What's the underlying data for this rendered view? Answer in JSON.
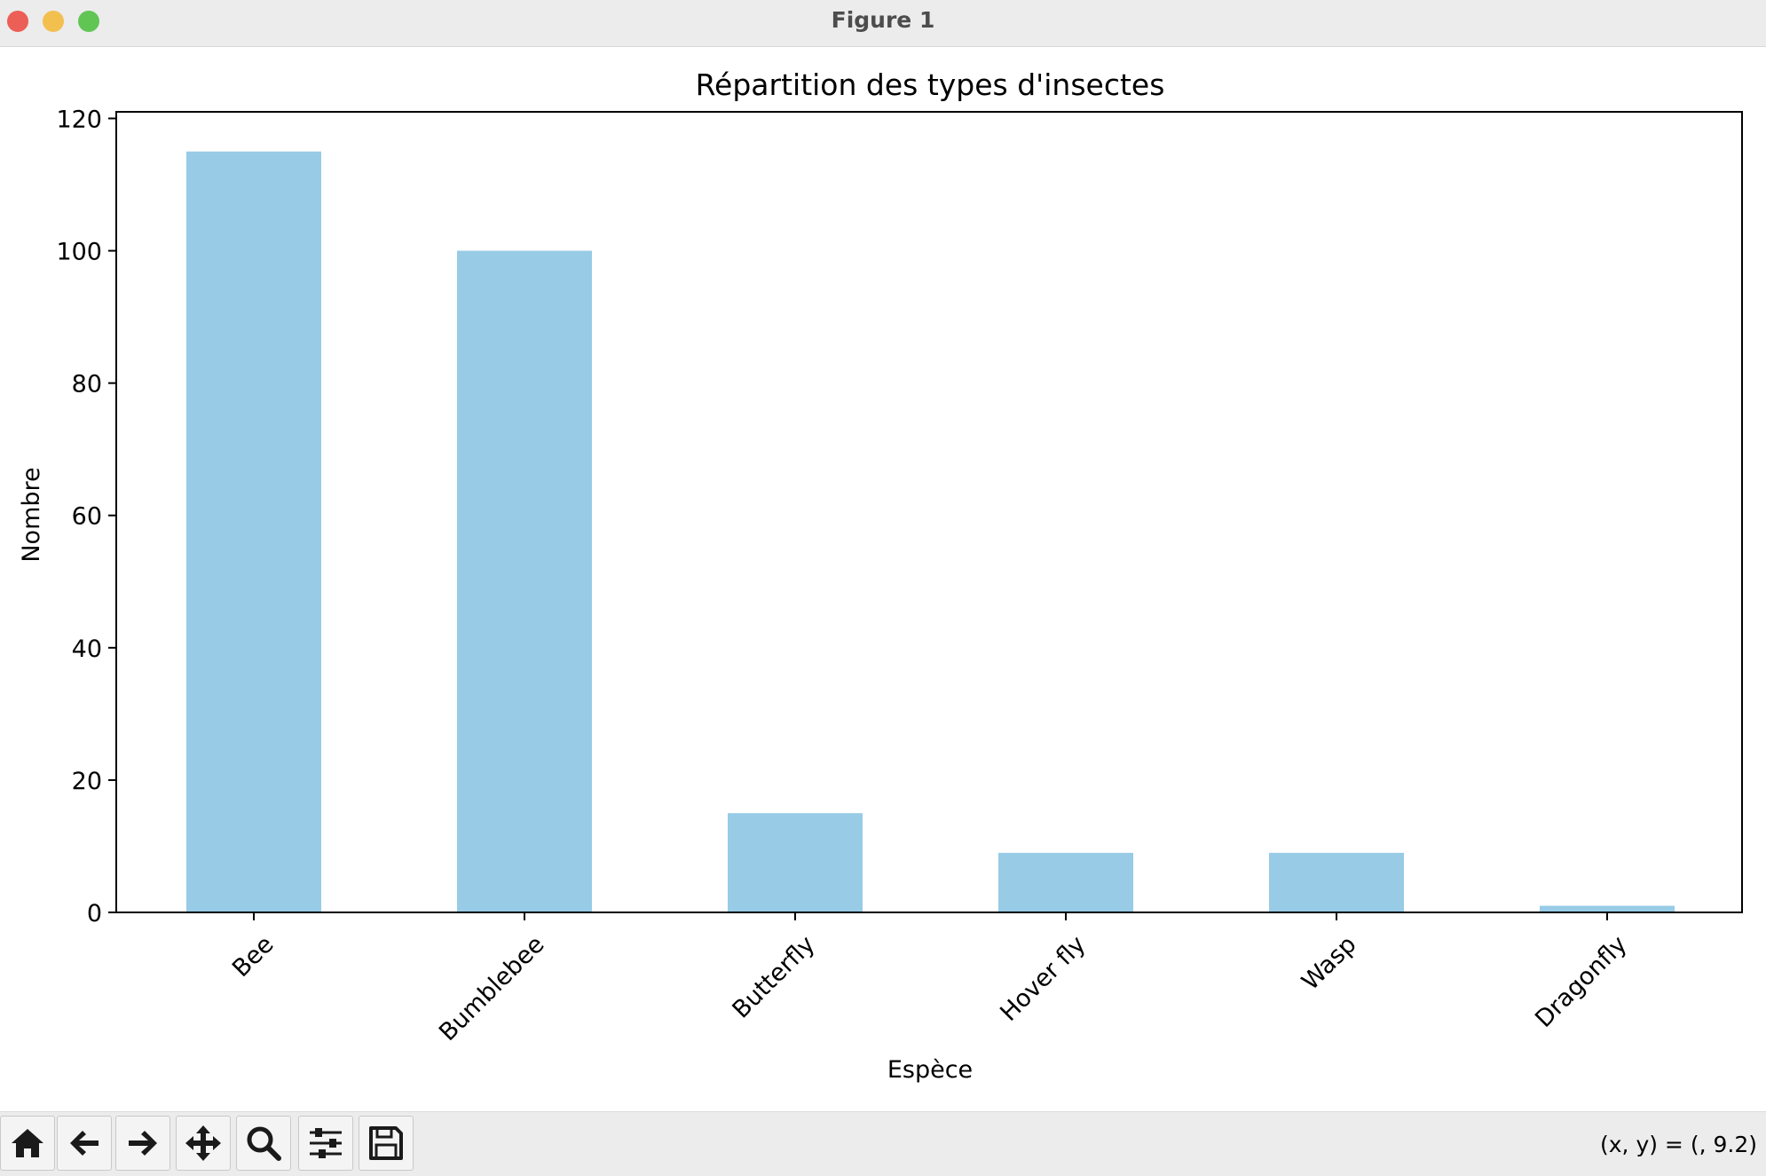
{
  "window": {
    "title": "Figure 1"
  },
  "toolbar": {
    "buttons": [
      {
        "name": "home-button",
        "icon": "home-icon"
      },
      {
        "name": "back-button",
        "icon": "arrow-left-icon"
      },
      {
        "name": "forward-button",
        "icon": "arrow-right-icon"
      },
      {
        "name": "pan-button",
        "icon": "move-icon"
      },
      {
        "name": "zoom-button",
        "icon": "magnifier-icon"
      },
      {
        "name": "configure-subplots-button",
        "icon": "sliders-icon"
      },
      {
        "name": "save-button",
        "icon": "floppy-icon"
      }
    ],
    "coords": "(x, y) = (, 9.2)"
  },
  "chart_data": {
    "type": "bar",
    "title": "Répartition des types d'insectes",
    "xlabel": "Espèce",
    "ylabel": "Nombre",
    "categories": [
      "Bee",
      "Bumblebee",
      "Butterfly",
      "Hover fly",
      "Wasp",
      "Dragonfly"
    ],
    "values": [
      115,
      100,
      15,
      9,
      9,
      1
    ],
    "ylim": [
      0,
      121
    ],
    "yticks": [
      0,
      20,
      40,
      60,
      80,
      100,
      120
    ],
    "bar_color": "#97cbe6",
    "grid": false,
    "legend": "none"
  }
}
